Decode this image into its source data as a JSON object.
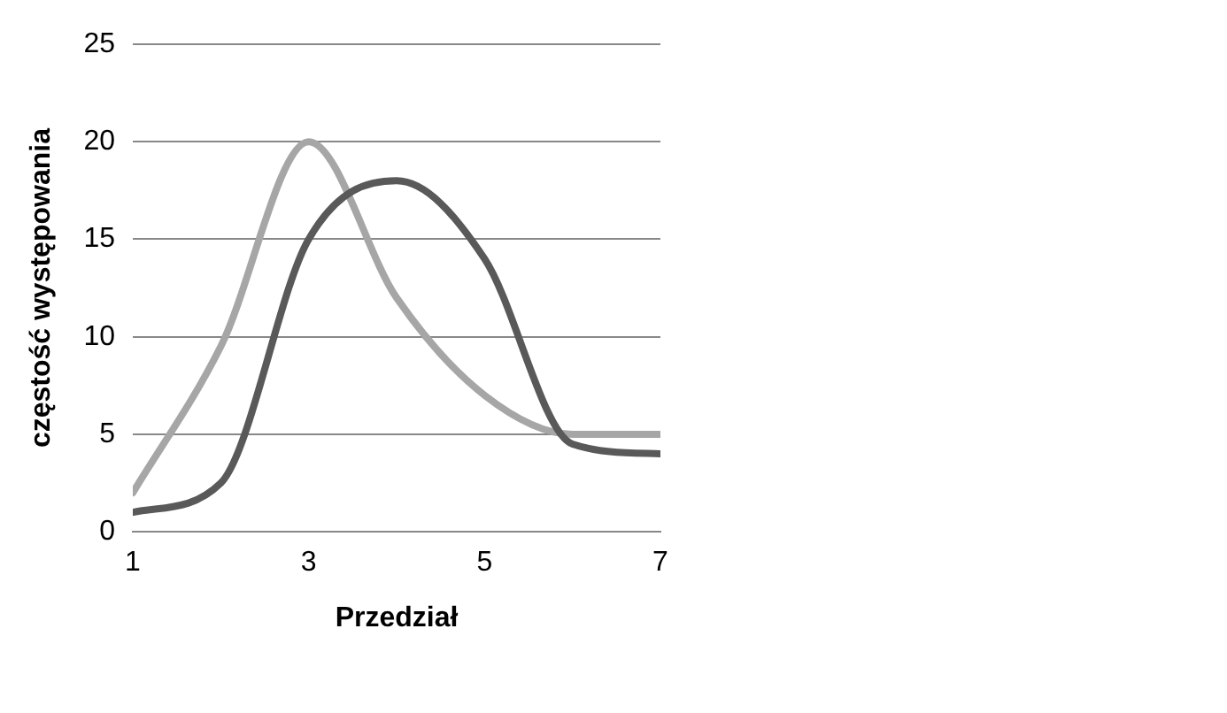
{
  "chart_data": {
    "type": "line",
    "xlabel": "Przedział",
    "ylabel": "częstość występowania",
    "x": [
      1,
      2,
      3,
      4,
      5,
      6,
      7
    ],
    "series": [
      {
        "color": "#595959",
        "values": [
          1,
          2.5,
          15,
          18,
          14,
          4.5,
          4
        ]
      },
      {
        "color": "#a6a6a6",
        "values": [
          2,
          9.5,
          20,
          12,
          7,
          5,
          5
        ]
      }
    ],
    "xlim": [
      1,
      7
    ],
    "xticks": [
      1,
      3,
      5,
      7
    ],
    "ylim": [
      0,
      25
    ],
    "yticks": [
      0,
      5,
      10,
      15,
      20,
      25
    ],
    "grid": "y",
    "marker": "none",
    "line_style": "solid"
  }
}
